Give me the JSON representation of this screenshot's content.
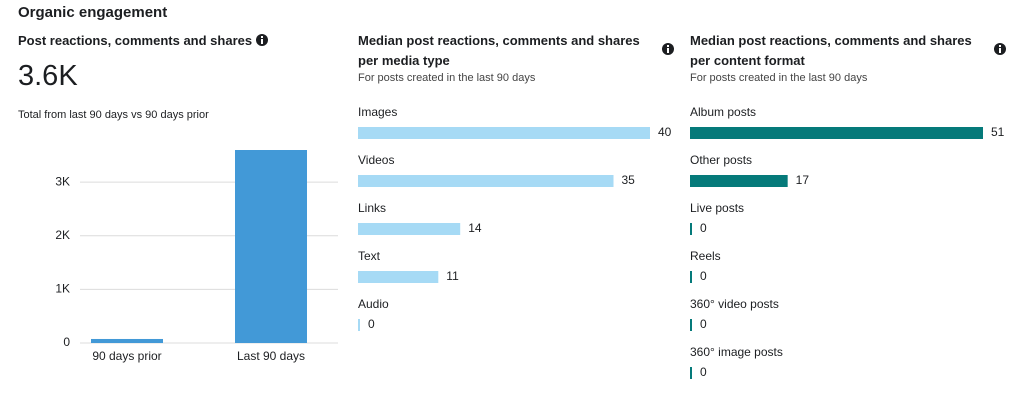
{
  "header": {
    "title": "Organic engagement"
  },
  "chart_data": [
    {
      "type": "bar",
      "title": "Post reactions, comments and shares",
      "kpi": "3.6K",
      "kpi_caption": "Total from last 90 days vs 90 days prior",
      "categories": [
        "90 days prior",
        "Last 90 days"
      ],
      "values": [
        75,
        3600
      ],
      "color": "#4299d7",
      "ylim": [
        0,
        3600
      ],
      "yticks": [
        0,
        {
          "value": 1000,
          "label": "1K"
        },
        {
          "value": 2000,
          "label": "2K"
        },
        {
          "value": 3000,
          "label": "3K"
        }
      ],
      "grid": true
    },
    {
      "type": "hbar",
      "title": "Median post reactions, comments and shares per media type",
      "subtitle": "For posts created in the last 90 days",
      "categories": [
        "Images",
        "Videos",
        "Links",
        "Text",
        "Audio"
      ],
      "values": [
        40,
        35,
        14,
        11,
        0
      ],
      "color": "#a6daf5",
      "xlim": [
        0,
        40
      ]
    },
    {
      "type": "hbar",
      "title": "Median post reactions, comments and shares per content format",
      "subtitle": "For posts created in the last 90 days",
      "categories": [
        "Album posts",
        "Other posts",
        "Live posts",
        "Reels",
        "360° video posts",
        "360° image posts"
      ],
      "values": [
        51,
        17,
        0,
        0,
        0,
        0
      ],
      "color": "#057a7a",
      "xlim": [
        0,
        51
      ]
    }
  ]
}
